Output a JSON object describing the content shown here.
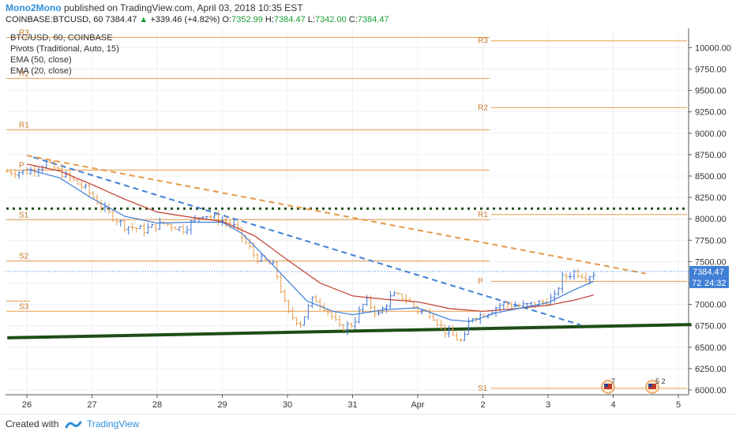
{
  "header": {
    "author": "Mono2Mono",
    "published": "published on TradingView.com, April 03, 2018 10:35 EST",
    "symbol": "COINBASE:BTCUSD, 60",
    "last": "7384.47",
    "change": "+339.46 (+4.82%)",
    "o_label": "O:",
    "o": "7352.99",
    "h_label": "H:",
    "h": "7384.47",
    "l_label": "L:",
    "l": "7342.00",
    "c_label": "C:",
    "c": "7384.47"
  },
  "legend": {
    "line1": "BTC/USD, 60, COINBASE",
    "line2": "Pivots (Traditional, Auto, 15)",
    "line3": "EMA (50, close)",
    "line4": "EMA (20, close)"
  },
  "price_tag": "7384.47",
  "price_tag2": "72",
  "countdown": "24:32",
  "footer": {
    "created": "Created with",
    "brand": "TradingView"
  },
  "events": [
    "7",
    "5 2"
  ],
  "colors": {
    "pivot": "#e69b4b",
    "ema50": "#c0392b",
    "ema20": "#3f7fd6",
    "trend_green": "#1e4d16",
    "trend_blue": "#3f7fd6",
    "trend_orange": "#e69b4b",
    "bull": "#3b73d3",
    "bear": "#e69b4b",
    "dotted": "#1e4d16"
  },
  "chart_data": {
    "type": "line",
    "x_labels": [
      "26",
      "27",
      "28",
      "29",
      "30",
      "31",
      "Apr",
      "2",
      "3",
      "4",
      "5"
    ],
    "y_ticks": [
      "6000.00",
      "6250.00",
      "6500.00",
      "6750.00",
      "7000.00",
      "7250.00",
      "7500.00",
      "7750.00",
      "8000.00",
      "8250.00",
      "8500.00",
      "8750.00",
      "9000.00",
      "9250.00",
      "9500.00",
      "9750.00",
      "10000.00"
    ],
    "ylim": [
      5900,
      10120
    ],
    "pivot_levels_period1": [
      {
        "name": "R3",
        "value": 10120
      },
      {
        "name": "R2",
        "value": 9640
      },
      {
        "name": "R1",
        "value": 9040
      },
      {
        "name": "P",
        "value": 8570
      },
      {
        "name": "S1",
        "value": 7990
      },
      {
        "name": "S2",
        "value": 7510
      },
      {
        "name": "S3",
        "value": 6920
      }
    ],
    "pivot_levels_period2": [
      {
        "name": "R3",
        "value": 10080
      },
      {
        "name": "R2",
        "value": 9300
      },
      {
        "name": "R1",
        "value": 8050
      },
      {
        "name": "P",
        "value": 7270
      },
      {
        "name": "S1",
        "value": 6020
      }
    ],
    "dotted_resistance": 8120,
    "last_price": 7384.47,
    "price_series": [
      {
        "t": 0.0,
        "v": 8550
      },
      {
        "t": 0.3,
        "v": 8650
      },
      {
        "t": 0.6,
        "v": 8500
      },
      {
        "t": 0.9,
        "v": 8350
      },
      {
        "t": 1.2,
        "v": 8100
      },
      {
        "t": 1.5,
        "v": 7920
      },
      {
        "t": 1.8,
        "v": 7870
      },
      {
        "t": 2.1,
        "v": 7950
      },
      {
        "t": 2.4,
        "v": 7880
      },
      {
        "t": 2.7,
        "v": 8060
      },
      {
        "t": 3.0,
        "v": 7980
      },
      {
        "t": 3.2,
        "v": 7900
      },
      {
        "t": 3.5,
        "v": 7560
      },
      {
        "t": 3.8,
        "v": 7440
      },
      {
        "t": 4.0,
        "v": 6900
      },
      {
        "t": 4.2,
        "v": 6780
      },
      {
        "t": 4.4,
        "v": 7080
      },
      {
        "t": 4.6,
        "v": 6950
      },
      {
        "t": 4.8,
        "v": 6720
      },
      {
        "t": 5.0,
        "v": 6770
      },
      {
        "t": 5.2,
        "v": 7050
      },
      {
        "t": 5.4,
        "v": 6880
      },
      {
        "t": 5.6,
        "v": 7100
      },
      {
        "t": 5.8,
        "v": 7080
      },
      {
        "t": 6.0,
        "v": 6930
      },
      {
        "t": 6.2,
        "v": 6900
      },
      {
        "t": 6.4,
        "v": 6700
      },
      {
        "t": 6.7,
        "v": 6550
      },
      {
        "t": 6.8,
        "v": 6850
      },
      {
        "t": 7.0,
        "v": 6880
      },
      {
        "t": 7.3,
        "v": 7010
      },
      {
        "t": 7.6,
        "v": 6980
      },
      {
        "t": 7.9,
        "v": 7020
      },
      {
        "t": 8.1,
        "v": 7080
      },
      {
        "t": 8.2,
        "v": 7300
      },
      {
        "t": 8.4,
        "v": 7380
      },
      {
        "t": 8.6,
        "v": 7330
      },
      {
        "t": 8.75,
        "v": 7384
      }
    ],
    "ema20": [
      {
        "t": 0.0,
        "v": 8580
      },
      {
        "t": 0.5,
        "v": 8480
      },
      {
        "t": 1.0,
        "v": 8240
      },
      {
        "t": 1.5,
        "v": 8030
      },
      {
        "t": 2.0,
        "v": 7950
      },
      {
        "t": 2.5,
        "v": 7960
      },
      {
        "t": 3.0,
        "v": 7960
      },
      {
        "t": 3.3,
        "v": 7830
      },
      {
        "t": 3.6,
        "v": 7600
      },
      {
        "t": 4.0,
        "v": 7280
      },
      {
        "t": 4.3,
        "v": 7040
      },
      {
        "t": 4.7,
        "v": 6920
      },
      {
        "t": 5.0,
        "v": 6880
      },
      {
        "t": 5.5,
        "v": 6940
      },
      {
        "t": 6.0,
        "v": 6960
      },
      {
        "t": 6.5,
        "v": 6820
      },
      {
        "t": 6.8,
        "v": 6800
      },
      {
        "t": 7.2,
        "v": 6900
      },
      {
        "t": 7.6,
        "v": 6960
      },
      {
        "t": 8.0,
        "v": 7020
      },
      {
        "t": 8.4,
        "v": 7170
      },
      {
        "t": 8.7,
        "v": 7270
      }
    ],
    "ema50": [
      {
        "t": 0.0,
        "v": 8640
      },
      {
        "t": 0.5,
        "v": 8560
      },
      {
        "t": 1.0,
        "v": 8400
      },
      {
        "t": 1.5,
        "v": 8230
      },
      {
        "t": 2.0,
        "v": 8080
      },
      {
        "t": 2.5,
        "v": 8020
      },
      {
        "t": 3.0,
        "v": 7970
      },
      {
        "t": 3.5,
        "v": 7800
      },
      {
        "t": 4.0,
        "v": 7520
      },
      {
        "t": 4.5,
        "v": 7250
      },
      {
        "t": 5.0,
        "v": 7100
      },
      {
        "t": 5.5,
        "v": 7060
      },
      {
        "t": 6.0,
        "v": 7030
      },
      {
        "t": 6.5,
        "v": 6950
      },
      {
        "t": 7.0,
        "v": 6920
      },
      {
        "t": 7.5,
        "v": 6950
      },
      {
        "t": 8.0,
        "v": 6990
      },
      {
        "t": 8.4,
        "v": 7050
      },
      {
        "t": 8.7,
        "v": 7110
      }
    ],
    "trendlines": [
      {
        "name": "support",
        "color": "#1e4d16",
        "t1": -0.3,
        "v1": 6610,
        "t2": 10.2,
        "v2": 6765
      },
      {
        "name": "blue-down",
        "color": "#3f7fd6",
        "t1": 0.1,
        "v1": 8720,
        "t2": 8.5,
        "v2": 6760
      },
      {
        "name": "orange-down",
        "color": "#e69b4b",
        "t1": 0.0,
        "v1": 8740,
        "t2": 9.5,
        "v2": 7360
      }
    ]
  }
}
